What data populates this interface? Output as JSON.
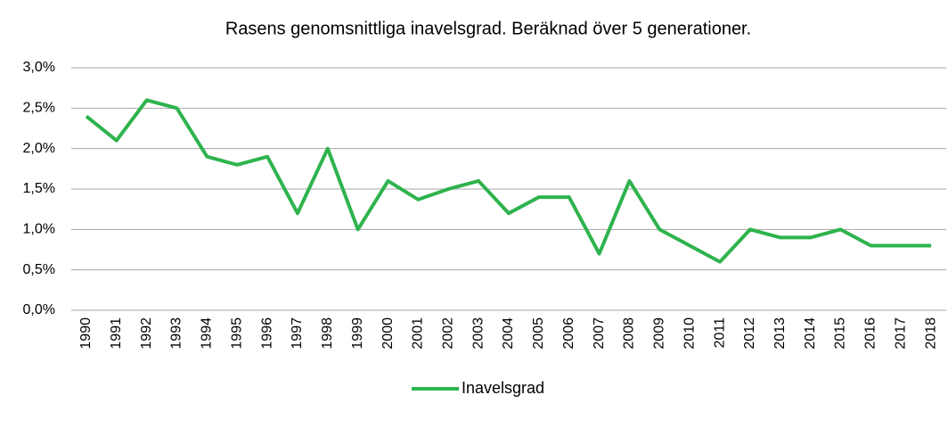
{
  "chart_data": {
    "type": "line",
    "title": "Rasens genomsnittliga inavelsgrad. Beräknad över 5 generationer.",
    "categories": [
      "1990",
      "1991",
      "1992",
      "1993",
      "1994",
      "1995",
      "1996",
      "1997",
      "1998",
      "1999",
      "2000",
      "2001",
      "2002",
      "2003",
      "2004",
      "2005",
      "2006",
      "2007",
      "2008",
      "2009",
      "2010",
      "2011",
      "2012",
      "2013",
      "2014",
      "2015",
      "2016",
      "2017",
      "2018"
    ],
    "series": [
      {
        "name": "Inavelsgrad",
        "color": "#2eb34d",
        "values": [
          2.4,
          2.1,
          2.6,
          2.5,
          1.9,
          1.8,
          1.9,
          1.2,
          2.0,
          1.0,
          1.6,
          1.37,
          1.5,
          1.6,
          1.2,
          1.4,
          1.4,
          0.7,
          1.6,
          1.0,
          0.8,
          0.6,
          1.0,
          0.9,
          0.9,
          1.0,
          0.8,
          0.8,
          0.8
        ]
      }
    ],
    "ylim": [
      0,
      3
    ],
    "yticks": [
      {
        "value": 0,
        "label": "0,0%"
      },
      {
        "value": 0.5,
        "label": "0,5%"
      },
      {
        "value": 1,
        "label": "1,0%"
      },
      {
        "value": 1.5,
        "label": "1,5%"
      },
      {
        "value": 2,
        "label": "2,0%"
      },
      {
        "value": 2.5,
        "label": "2,5%"
      },
      {
        "value": 3,
        "label": "3,0%"
      }
    ],
    "grid": true,
    "legend": "bottom"
  }
}
